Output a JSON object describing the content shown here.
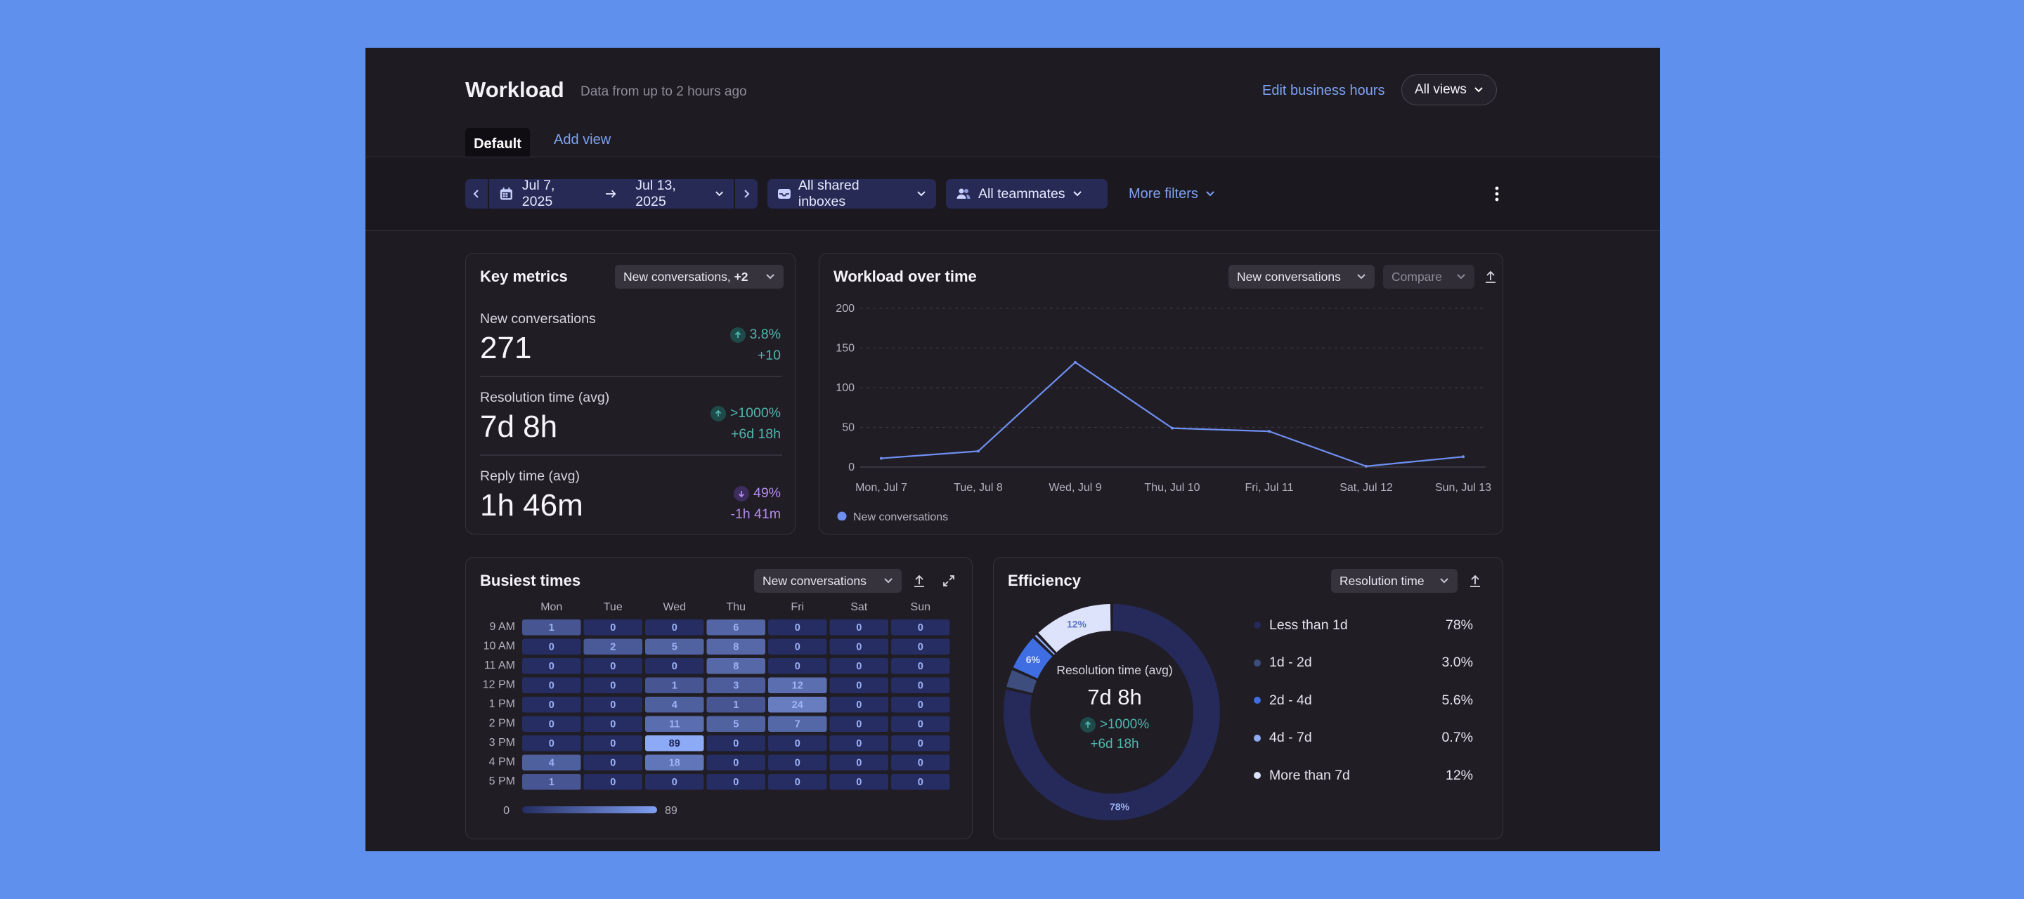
{
  "header": {
    "title": "Workload",
    "subtitle": "Data from up to 2 hours ago",
    "edit_link": "Edit business hours",
    "views_label": "All views"
  },
  "tabs": [
    {
      "label": "Default",
      "active": true
    },
    {
      "label": "Add view",
      "active": false
    }
  ],
  "filters": {
    "date_start": "Jul 7, 2025",
    "date_end": "Jul 13, 2025",
    "inboxes": "All shared inboxes",
    "teammates": "All teammates",
    "more": "More filters"
  },
  "key_metrics": {
    "title": "Key metrics",
    "dropdown": "New conversations, ",
    "dropdown_bold": "+2",
    "items": [
      {
        "label": "New conversations",
        "value": "271",
        "pct": "3.8%",
        "abs": "+10",
        "direction": "up"
      },
      {
        "label": "Resolution time (avg)",
        "value": "7d 8h",
        "pct": ">1000%",
        "abs": "+6d 18h",
        "direction": "up"
      },
      {
        "label": "Reply time (avg)",
        "value": "1h 46m",
        "pct": "49%",
        "abs": "-1h 41m",
        "direction": "down"
      }
    ]
  },
  "workload": {
    "title": "Workload over time",
    "metric_dropdown": "New conversations",
    "compare_dropdown": "Compare"
  },
  "chart_data": {
    "type": "line",
    "x": [
      "Mon, Jul 7",
      "Tue, Jul 8",
      "Wed, Jul 9",
      "Thu, Jul 10",
      "Fri, Jul 11",
      "Sat, Jul 12",
      "Sun, Jul 13"
    ],
    "series": [
      {
        "name": "New conversations",
        "values": [
          11,
          20,
          132,
          49,
          45,
          1,
          13
        ]
      }
    ],
    "ylim": [
      0,
      200
    ],
    "yticks": [
      0,
      50,
      100,
      150,
      200
    ],
    "grid": true,
    "legend": "bottom-left",
    "color": "#6f8ff0"
  },
  "busiest": {
    "title": "Busiest times",
    "dropdown": "New conversations",
    "days": [
      "Mon",
      "Tue",
      "Wed",
      "Thu",
      "Fri",
      "Sat",
      "Sun"
    ],
    "hours": [
      "9 AM",
      "10 AM",
      "11 AM",
      "12 PM",
      "1 PM",
      "2 PM",
      "3 PM",
      "4 PM",
      "5 PM"
    ],
    "values": [
      [
        1,
        0,
        0,
        6,
        0,
        0,
        0
      ],
      [
        0,
        2,
        5,
        8,
        0,
        0,
        0
      ],
      [
        0,
        0,
        0,
        8,
        0,
        0,
        0
      ],
      [
        0,
        0,
        1,
        3,
        12,
        0,
        0
      ],
      [
        0,
        0,
        4,
        1,
        24,
        0,
        0
      ],
      [
        0,
        0,
        11,
        5,
        7,
        0,
        0
      ],
      [
        0,
        0,
        89,
        0,
        0,
        0,
        0
      ],
      [
        4,
        0,
        18,
        0,
        0,
        0,
        0
      ],
      [
        1,
        0,
        0,
        0,
        0,
        0,
        0
      ]
    ],
    "scale_min": "0",
    "scale_max": "89"
  },
  "efficiency": {
    "title": "Efficiency",
    "dropdown": "Resolution time",
    "center_label": "Resolution time (avg)",
    "center_value": "7d 8h",
    "center_pct": ">1000%",
    "center_abs": "+6d 18h",
    "slices": [
      {
        "label": "Less than 1d",
        "pct": "78%",
        "value": 78,
        "color": "#262a5a",
        "ring_label": "78%"
      },
      {
        "label": "1d - 2d",
        "pct": "3.0%",
        "value": 3.0,
        "color": "#3d4e7e",
        "ring_label": ""
      },
      {
        "label": "2d - 4d",
        "pct": "5.6%",
        "value": 5.6,
        "color": "#3f6ee2",
        "ring_label": "6%"
      },
      {
        "label": "4d - 7d",
        "pct": "0.7%",
        "value": 0.7,
        "color": "#90abf5",
        "ring_label": ""
      },
      {
        "label": "More than 7d",
        "pct": "12%",
        "value": 12,
        "color": "#dde3fb",
        "ring_label": "12%"
      }
    ]
  }
}
